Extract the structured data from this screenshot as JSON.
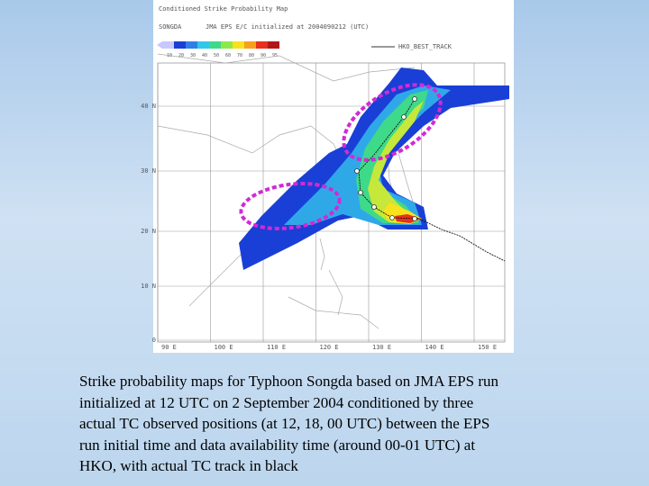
{
  "map": {
    "title": "Conditioned Strike Probability Map",
    "run": "SONGDA",
    "subtitle": "JMA EPS E/C initialized at 2004090212 (UTC)",
    "legend": "HKO_BEST_TRACK",
    "colorbar_labels": [
      "10",
      "20",
      "30",
      "40",
      "50",
      "60",
      "70",
      "80",
      "90",
      "95"
    ],
    "lat_labels": [
      "40 N",
      "30 N",
      "20 N",
      "10 N",
      "0"
    ],
    "lon_labels": [
      "90 E",
      "100 E",
      "110 E",
      "120 E",
      "130 E",
      "140 E",
      "150 E"
    ]
  },
  "caption": {
    "lines": [
      "Strike probability maps for Typhoon Songda based on JMA EPS run",
      "initialized at 12 UTC on 2 September 2004 conditioned by three",
      "actual TC observed positions (at 12, 18, 00 UTC) between the EPS",
      "run initial time and data availability time (around 00-01 UTC) at",
      "HKO, with actual TC track in black"
    ]
  }
}
